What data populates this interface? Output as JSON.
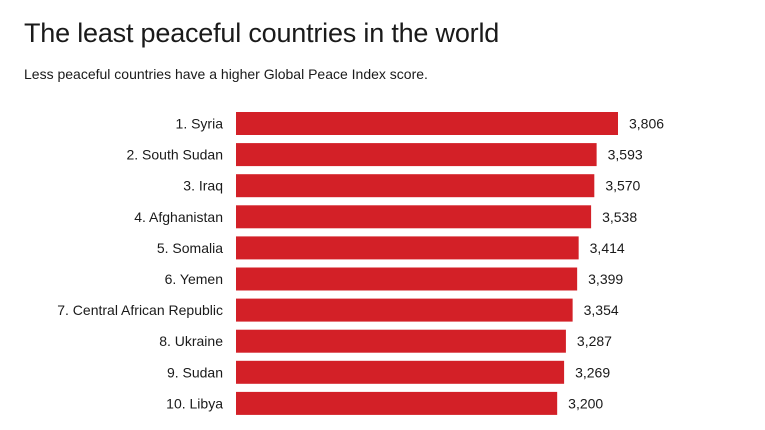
{
  "page": {
    "title": "The least peaceful countries in the world",
    "subtitle": "Less peaceful countries have a higher Global Peace Index score."
  },
  "colors": {
    "bar": "#d32027",
    "text": "#1a1a1a",
    "background": "#ffffff"
  },
  "chart_data": {
    "type": "bar",
    "orientation": "horizontal",
    "title": "The least peaceful countries in the world",
    "subtitle": "Less peaceful countries have a higher Global Peace Index score.",
    "categories": [
      "1. Syria",
      "2. South Sudan",
      "3. Iraq",
      "4. Afghanistan",
      "5. Somalia",
      "6. Yemen",
      "7. Central African Republic",
      "8. Ukraine",
      "9. Sudan",
      "10. Libya"
    ],
    "values": [
      3.806,
      3.593,
      3.57,
      3.538,
      3.414,
      3.399,
      3.354,
      3.287,
      3.269,
      3.2
    ],
    "value_labels": [
      "3,806",
      "3,593",
      "3,570",
      "3,538",
      "3,414",
      "3,399",
      "3,354",
      "3,287",
      "3,269",
      "3,200"
    ],
    "xlim": [
      0,
      3.806
    ],
    "grid": false,
    "legend": "none"
  }
}
